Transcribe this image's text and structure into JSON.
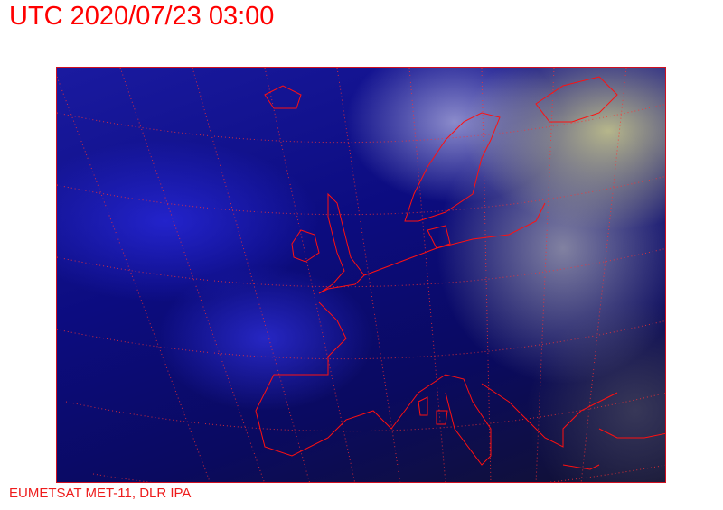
{
  "header": {
    "title": "UTC 2020/07/23 03:00"
  },
  "map": {
    "type": "satellite-image",
    "region": "Europe",
    "coastline_color": "#ff0000",
    "grid_color": "#ff3030"
  },
  "footer": {
    "credit": "EUMETSAT MET-11, DLR IPA"
  }
}
